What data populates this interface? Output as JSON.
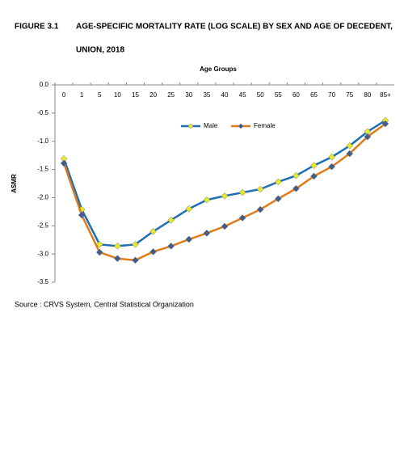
{
  "chart_data": {
    "type": "line",
    "figure_label": "FIGURE 3.1",
    "title_lines": [
      "AGE-SPECIFIC MORTALITY RATE (LOG SCALE) BY SEX AND AGE OF DECEDENT,",
      "UNION, 2018"
    ],
    "x_label": "Age Groups",
    "y_label": "ASMR",
    "source": "Source : CRVS System, Central Statistical Organization",
    "categories": [
      "0",
      "1",
      "5",
      "10",
      "15",
      "20",
      "25",
      "30",
      "35",
      "40",
      "45",
      "50",
      "55",
      "60",
      "65",
      "70",
      "75",
      "80",
      "85+"
    ],
    "series": [
      {
        "name": "Male",
        "color": "#1f6fb4",
        "marker_color": "#e8e82a",
        "values": [
          -1.31,
          -2.21,
          -2.83,
          -2.86,
          -2.83,
          -2.6,
          -2.4,
          -2.2,
          -2.04,
          -1.97,
          -1.91,
          -1.85,
          -1.72,
          -1.61,
          -1.43,
          -1.28,
          -1.08,
          -0.83,
          -0.63
        ]
      },
      {
        "name": "Female",
        "color": "#e07b1a",
        "marker_color": "#3f5e8c",
        "values": [
          -1.39,
          -2.31,
          -2.97,
          -3.08,
          -3.11,
          -2.96,
          -2.86,
          -2.74,
          -2.63,
          -2.51,
          -2.36,
          -2.21,
          -2.02,
          -1.84,
          -1.62,
          -1.45,
          -1.22,
          -0.92,
          -0.69
        ]
      }
    ],
    "ylim": [
      -3.5,
      0
    ],
    "yticks": [
      {
        "value": 0,
        "label": "0.0"
      },
      -0.5,
      {
        "value": -1,
        "label": "-1.0"
      },
      -1.5,
      {
        "value": -2,
        "label": "-2.0"
      },
      -2.5,
      {
        "value": -3,
        "label": "-3.0"
      },
      -3.5
    ],
    "grid": false,
    "legend": "top"
  }
}
